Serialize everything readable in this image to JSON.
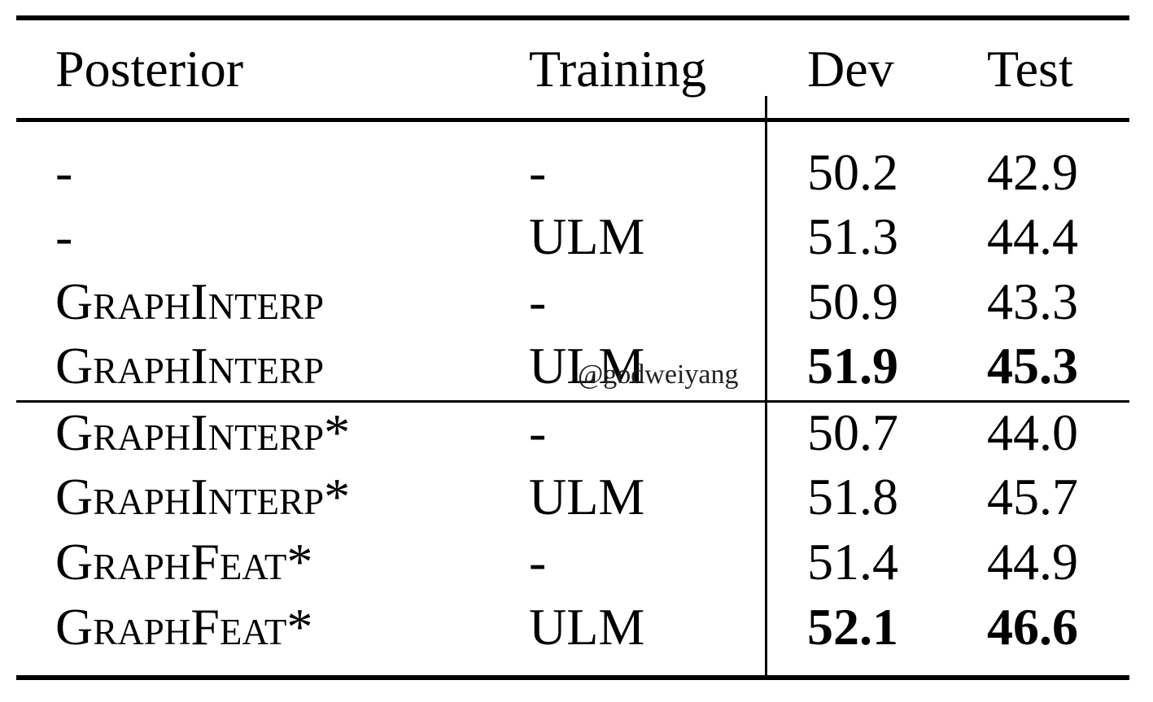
{
  "header": {
    "posterior": "Posterior",
    "training": "Training",
    "dev": "Dev",
    "test": "Test"
  },
  "rows": [
    {
      "posterior": "-",
      "training": "-",
      "dev": "50.2",
      "test": "42.9",
      "bold": false
    },
    {
      "posterior": "-",
      "training": "ULM",
      "dev": "51.3",
      "test": "44.4",
      "bold": false
    },
    {
      "posterior": "GraphInterp",
      "training": "-",
      "dev": "50.9",
      "test": "43.3",
      "bold": false
    },
    {
      "posterior": "GraphInterp",
      "training": "ULM",
      "dev": "51.9",
      "test": "45.3",
      "bold": true
    },
    {
      "posterior": "GraphInterp*",
      "training": "-",
      "dev": "50.7",
      "test": "44.0",
      "bold": false
    },
    {
      "posterior": "GraphInterp*",
      "training": "ULM",
      "dev": "51.8",
      "test": "45.7",
      "bold": false
    },
    {
      "posterior": "GraphFeat*",
      "training": "-",
      "dev": "51.4",
      "test": "44.9",
      "bold": false
    },
    {
      "posterior": "GraphFeat*",
      "training": "ULM",
      "dev": "52.1",
      "test": "46.6",
      "bold": true
    }
  ],
  "watermark": "@godweiyang"
}
